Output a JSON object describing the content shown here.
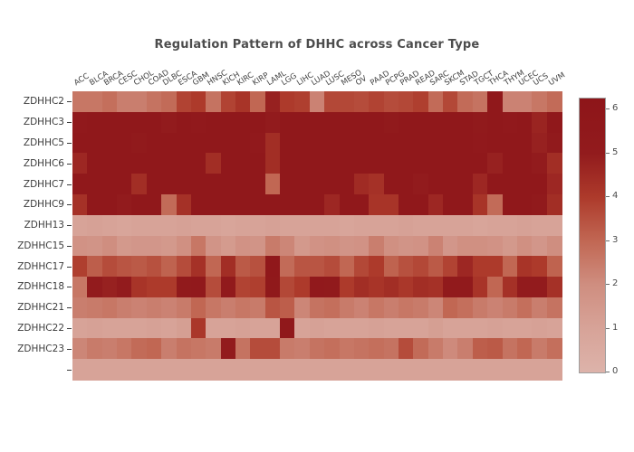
{
  "title": "Regulation Pattern of DHHC across Cancer Type",
  "colors": {
    "background": "#ffffff",
    "title_text": "#4c4c4c",
    "tick_text": "#3c3c3c",
    "colorbar_border": "#9e9e9e",
    "scale_low": "#ddb3aa",
    "scale_mid": "#c16753",
    "scale_high": "#8e1519"
  },
  "chart_data": {
    "type": "heatmap",
    "title": "Regulation Pattern of DHHC across Cancer Type",
    "xlabel": "",
    "ylabel": "",
    "x_axis_side": "top",
    "grid": false,
    "legend_position": "right",
    "x_categories": [
      "ACC",
      "BLCA",
      "BRCA",
      "CESC",
      "CHOL",
      "COAD",
      "DLBC",
      "ESCA",
      "GBM",
      "HNSC",
      "KICH",
      "KIRC",
      "KIRP",
      "LAML",
      "LGG",
      "LIHC",
      "LUAD",
      "LUSC",
      "MESO",
      "OV",
      "PAAD",
      "PCPG",
      "PRAD",
      "READ",
      "SARC",
      "SKCM",
      "STAD",
      "TGCT",
      "THCA",
      "THYM",
      "UCEC",
      "UCS",
      "UVM"
    ],
    "y_categories": [
      "ZDHHC2",
      "ZDHHC3",
      "ZDHHC5",
      "ZDHHC6",
      "ZDHHC7",
      "ZDHHC9",
      "ZDHH13",
      "ZDHHC15",
      "ZDHHC17",
      "ZDHHC18",
      "ZDHHC21",
      "ZDHHC22",
      "ZDHHC23",
      ""
    ],
    "values": [
      [
        2.6,
        2.6,
        2.8,
        2.4,
        2.4,
        2.7,
        2.9,
        3.8,
        4.0,
        2.7,
        3.8,
        4.2,
        3.0,
        4.8,
        4.0,
        3.9,
        2.3,
        3.7,
        3.7,
        3.6,
        3.8,
        3.6,
        3.7,
        3.9,
        2.9,
        3.7,
        2.9,
        2.7,
        5.6,
        2.3,
        2.3,
        2.6,
        2.9
      ],
      [
        5.4,
        5.7,
        5.7,
        5.7,
        5.7,
        5.7,
        5.1,
        5.7,
        5.4,
        5.7,
        5.7,
        5.7,
        5.7,
        5.0,
        5.7,
        5.7,
        5.7,
        5.7,
        5.7,
        5.7,
        5.7,
        5.3,
        5.7,
        5.7,
        5.7,
        5.7,
        5.7,
        5.2,
        5.7,
        5.4,
        5.7,
        4.7,
        5.7
      ],
      [
        5.7,
        5.7,
        5.7,
        5.7,
        5.3,
        5.7,
        5.7,
        5.7,
        5.7,
        5.7,
        5.7,
        5.7,
        5.4,
        4.4,
        5.7,
        5.7,
        5.7,
        5.7,
        5.7,
        5.7,
        5.7,
        5.7,
        5.7,
        5.7,
        5.7,
        5.7,
        5.7,
        5.4,
        5.7,
        5.7,
        5.7,
        4.8,
        5.2
      ],
      [
        4.6,
        5.7,
        5.7,
        5.7,
        5.7,
        5.7,
        5.7,
        5.7,
        5.7,
        4.4,
        5.7,
        5.7,
        5.7,
        4.4,
        5.7,
        5.7,
        5.7,
        5.7,
        5.7,
        5.7,
        5.7,
        5.7,
        5.7,
        5.7,
        5.7,
        5.7,
        5.7,
        5.7,
        4.8,
        5.7,
        5.7,
        5.0,
        4.4
      ],
      [
        5.7,
        5.7,
        5.7,
        5.7,
        4.4,
        5.7,
        5.7,
        5.7,
        5.7,
        5.7,
        5.7,
        5.7,
        5.7,
        3.0,
        5.7,
        5.7,
        5.7,
        5.7,
        5.7,
        4.5,
        4.3,
        5.7,
        5.7,
        5.0,
        5.7,
        5.7,
        5.7,
        4.6,
        5.7,
        5.7,
        5.7,
        5.7,
        4.6
      ],
      [
        4.3,
        5.7,
        5.7,
        5.0,
        5.7,
        5.7,
        2.9,
        4.3,
        5.7,
        5.7,
        5.7,
        5.7,
        5.7,
        5.7,
        5.7,
        5.7,
        5.7,
        4.6,
        5.7,
        5.7,
        4.2,
        4.2,
        5.7,
        5.7,
        4.6,
        5.7,
        5.7,
        4.2,
        2.9,
        5.7,
        5.7,
        5.2,
        4.4
      ],
      [
        1.0,
        1.1,
        1.0,
        0.9,
        1.0,
        1.0,
        1.0,
        1.1,
        1.0,
        1.0,
        0.9,
        1.0,
        1.0,
        1.1,
        1.0,
        1.0,
        1.0,
        1.0,
        0.9,
        1.0,
        1.0,
        1.0,
        1.1,
        1.0,
        1.0,
        1.0,
        1.0,
        0.9,
        1.0,
        1.0,
        1.1,
        1.0,
        1.0
      ],
      [
        1.8,
        1.7,
        2.0,
        1.5,
        1.6,
        1.6,
        1.5,
        1.9,
        2.6,
        1.7,
        1.4,
        1.8,
        1.7,
        2.5,
        2.2,
        1.5,
        1.8,
        1.9,
        1.7,
        1.8,
        2.4,
        1.9,
        1.7,
        1.8,
        2.3,
        1.6,
        1.9,
        1.9,
        1.8,
        1.5,
        1.9,
        1.6,
        2.0
      ],
      [
        3.9,
        3.2,
        3.6,
        3.4,
        3.3,
        3.5,
        3.1,
        3.6,
        4.3,
        3.0,
        4.4,
        3.3,
        3.5,
        5.7,
        2.9,
        3.4,
        3.4,
        3.6,
        3.0,
        3.7,
        4.0,
        3.1,
        3.5,
        3.7,
        3.3,
        3.8,
        4.6,
        4.0,
        4.0,
        3.0,
        4.2,
        4.0,
        3.1
      ],
      [
        2.6,
        5.0,
        4.8,
        5.0,
        4.2,
        4.0,
        4.0,
        5.2,
        5.4,
        3.6,
        5.3,
        3.8,
        3.9,
        5.5,
        3.7,
        4.0,
        5.4,
        5.3,
        4.0,
        4.4,
        4.2,
        4.4,
        4.1,
        4.4,
        4.3,
        5.2,
        5.2,
        4.2,
        3.0,
        4.3,
        5.0,
        5.0,
        4.3
      ],
      [
        2.4,
        2.5,
        2.6,
        2.4,
        2.3,
        2.4,
        2.3,
        2.5,
        3.0,
        2.6,
        2.4,
        2.6,
        2.5,
        3.4,
        3.2,
        2.2,
        2.7,
        2.8,
        2.5,
        2.3,
        2.6,
        2.4,
        2.6,
        2.5,
        2.2,
        3.0,
        2.8,
        2.5,
        2.3,
        2.5,
        2.8,
        2.4,
        2.7
      ],
      [
        1.0,
        1.1,
        1.0,
        1.0,
        1.0,
        1.1,
        1.0,
        1.2,
        4.1,
        1.0,
        1.0,
        1.1,
        1.0,
        1.0,
        5.6,
        1.0,
        1.1,
        1.0,
        1.0,
        1.0,
        1.1,
        1.0,
        1.0,
        1.0,
        1.2,
        1.0,
        1.0,
        1.0,
        1.1,
        1.0,
        1.0,
        1.1,
        1.0
      ],
      [
        2.2,
        2.5,
        2.4,
        2.6,
        2.9,
        3.0,
        2.4,
        2.7,
        2.6,
        2.5,
        5.0,
        2.7,
        3.6,
        3.6,
        2.5,
        2.4,
        2.7,
        2.8,
        2.6,
        2.7,
        2.8,
        2.7,
        3.6,
        2.9,
        2.5,
        2.1,
        2.4,
        3.2,
        3.3,
        2.7,
        3.0,
        2.5,
        2.8
      ],
      [
        1.0,
        1.0,
        1.0,
        1.0,
        1.0,
        1.0,
        1.0,
        1.0,
        1.0,
        1.0,
        1.0,
        1.0,
        1.0,
        1.0,
        1.0,
        1.0,
        1.0,
        1.0,
        1.0,
        1.0,
        1.0,
        1.0,
        1.0,
        1.0,
        1.0,
        1.0,
        1.0,
        1.0,
        1.0,
        1.0,
        1.0,
        1.0,
        1.0
      ]
    ],
    "colorbar": {
      "min": 0,
      "max": 6.25,
      "ticks": [
        0,
        1,
        2,
        3,
        4,
        5,
        6
      ],
      "stops": [
        {
          "v": 0,
          "rgb": [
            221,
            179,
            170
          ]
        },
        {
          "v": 1,
          "rgb": [
            215,
            163,
            152
          ]
        },
        {
          "v": 2,
          "rgb": [
            207,
            142,
            128
          ]
        },
        {
          "v": 3,
          "rgb": [
            193,
            103,
            83
          ]
        },
        {
          "v": 4,
          "rgb": [
            173,
            58,
            43
          ]
        },
        {
          "v": 5,
          "rgb": [
            146,
            27,
            29
          ]
        },
        {
          "v": 6.25,
          "rgb": [
            142,
            21,
            25
          ]
        }
      ]
    }
  }
}
